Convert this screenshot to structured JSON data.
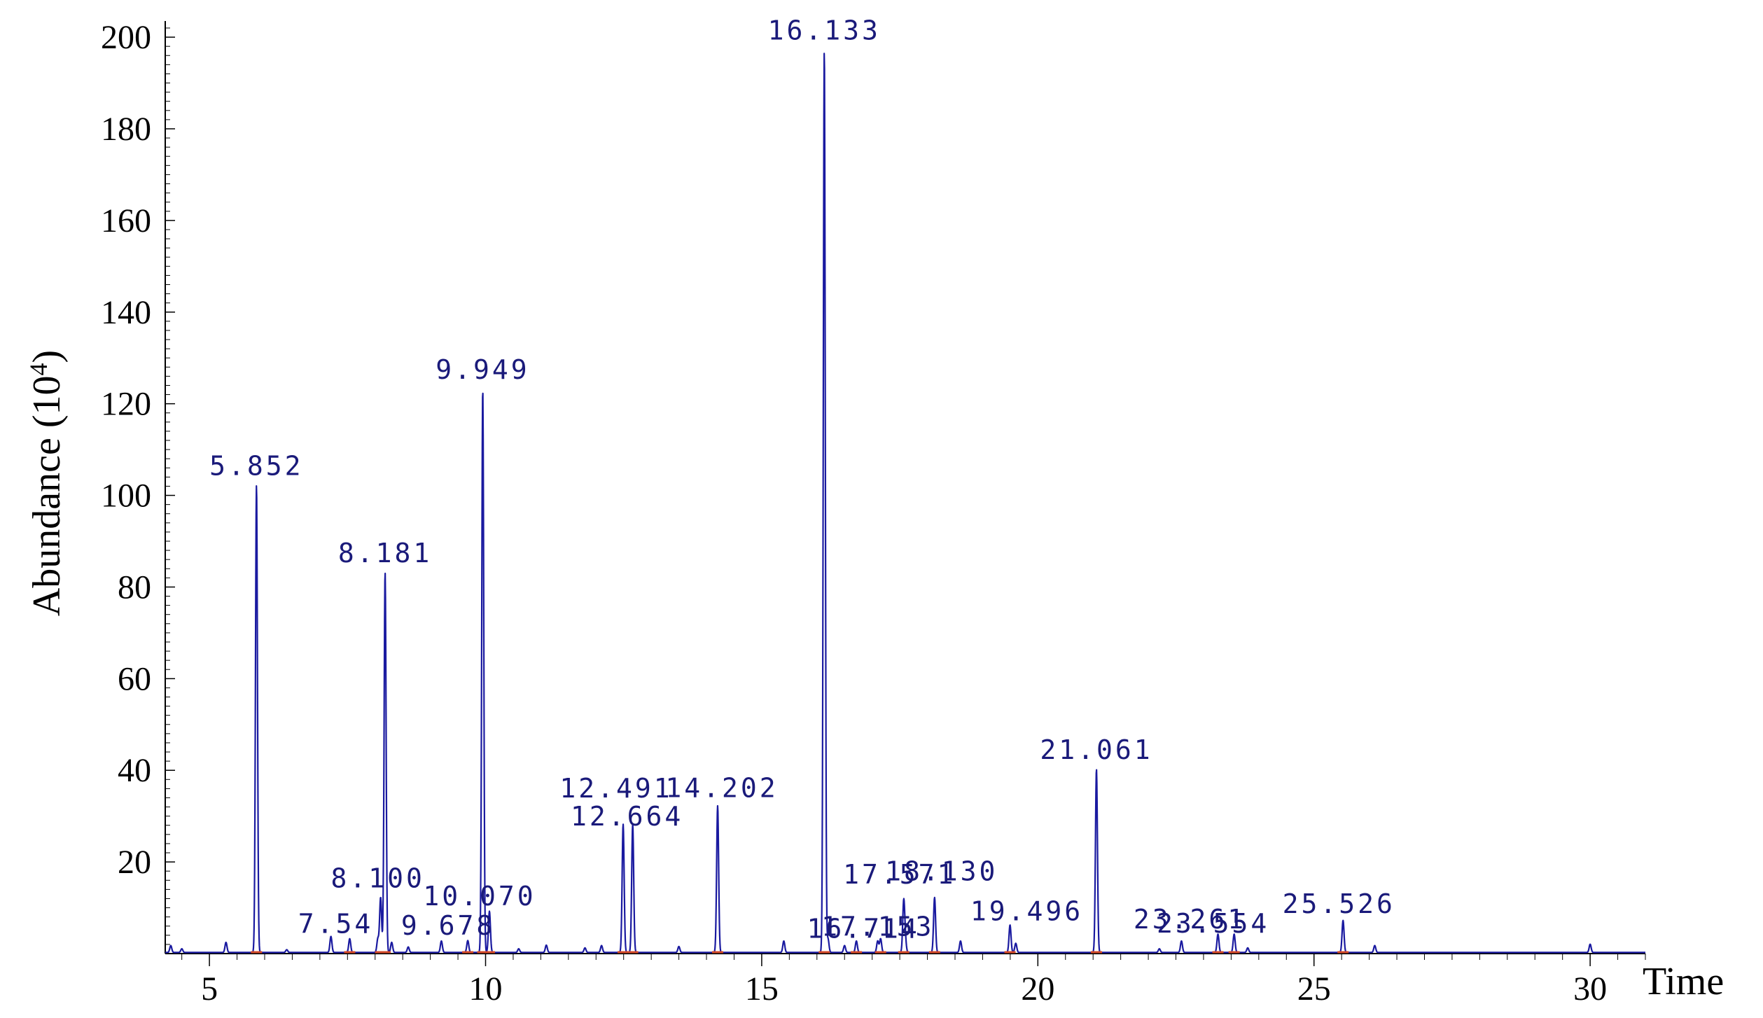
{
  "chart_data": {
    "type": "line",
    "title": "",
    "xlabel": "Time",
    "ylabel": "Abundance (10",
    "ylabel_sup": "4",
    "ylabel_close": ")",
    "xlim": [
      4.2,
      31.0
    ],
    "ylim": [
      0,
      202
    ],
    "x_ticks": [
      5,
      10,
      15,
      20,
      25,
      30
    ],
    "x_tick_labels": [
      "5",
      "10",
      "15",
      "20",
      "25",
      "30"
    ],
    "y_ticks": [
      20,
      40,
      60,
      80,
      100,
      120,
      140,
      160,
      180,
      200
    ],
    "y_tick_labels": [
      "20",
      "40",
      "60",
      "80",
      "100",
      "120",
      "140",
      "160",
      "180",
      "200"
    ],
    "grid": false,
    "line_color": "#1a1aa0",
    "label_color": "#1a1a7a",
    "baseline_marker_color": "#d44a2a",
    "peaks": [
      {
        "x": 4.3,
        "y": 1.5
      },
      {
        "x": 4.5,
        "y": 0.8
      },
      {
        "x": 5.3,
        "y": 2.2
      },
      {
        "x": 5.852,
        "y": 102,
        "label": "5.852"
      },
      {
        "x": 6.4,
        "y": 0.6
      },
      {
        "x": 7.2,
        "y": 3.5
      },
      {
        "x": 7.54,
        "y": 3.0,
        "label": "7.54"
      },
      {
        "x": 8.05,
        "y": 3.0
      },
      {
        "x": 8.1,
        "y": 12,
        "label": "8.100"
      },
      {
        "x": 8.181,
        "y": 83,
        "label": "8.181"
      },
      {
        "x": 8.3,
        "y": 2.2
      },
      {
        "x": 8.6,
        "y": 1.2
      },
      {
        "x": 9.2,
        "y": 2.5
      },
      {
        "x": 9.678,
        "y": 2.6,
        "label": "9.678"
      },
      {
        "x": 9.949,
        "y": 123,
        "label": "9.949"
      },
      {
        "x": 10.07,
        "y": 9,
        "label": "10.070"
      },
      {
        "x": 10.6,
        "y": 0.8
      },
      {
        "x": 11.1,
        "y": 1.6
      },
      {
        "x": 11.8,
        "y": 1.0
      },
      {
        "x": 12.1,
        "y": 1.5
      },
      {
        "x": 12.491,
        "y": 28,
        "label": "12.491"
      },
      {
        "x": 12.664,
        "y": 28,
        "label": "12.664"
      },
      {
        "x": 13.5,
        "y": 1.3
      },
      {
        "x": 14.202,
        "y": 32,
        "label": "14.202"
      },
      {
        "x": 15.4,
        "y": 2.5
      },
      {
        "x": 16.133,
        "y": 197,
        "label": "16.133"
      },
      {
        "x": 16.2,
        "y": 3.0
      },
      {
        "x": 16.5,
        "y": 1.5
      },
      {
        "x": 16.714,
        "y": 2.5,
        "label": "16.714"
      },
      {
        "x": 17.1,
        "y": 2.5
      },
      {
        "x": 17.153,
        "y": 3.0,
        "label": "17.153"
      },
      {
        "x": 17.571,
        "y": 11,
        "label": "17.571"
      },
      {
        "x": 17.6,
        "y": 2.5
      },
      {
        "x": 18.13,
        "y": 12,
        "label": "18.130"
      },
      {
        "x": 18.6,
        "y": 2.5
      },
      {
        "x": 19.496,
        "y": 6,
        "label": "19.496"
      },
      {
        "x": 19.6,
        "y": 2.0
      },
      {
        "x": 21.061,
        "y": 40,
        "label": "21.061"
      },
      {
        "x": 22.2,
        "y": 0.8
      },
      {
        "x": 22.6,
        "y": 2.5
      },
      {
        "x": 23.261,
        "y": 4,
        "label": "23.261"
      },
      {
        "x": 23.554,
        "y": 4,
        "label": "23.554"
      },
      {
        "x": 23.8,
        "y": 1.0
      },
      {
        "x": 25.526,
        "y": 7,
        "label": "25.526"
      },
      {
        "x": 26.1,
        "y": 1.5
      },
      {
        "x": 30.0,
        "y": 1.8
      }
    ],
    "peak_labels": [
      {
        "text": "5.852",
        "x": 5.852,
        "y": 102
      },
      {
        "text": "8.181",
        "x": 8.181,
        "y": 83
      },
      {
        "text": "9.949",
        "x": 9.949,
        "y": 123
      },
      {
        "text": "16.133",
        "x": 16.133,
        "y": 197
      },
      {
        "text": "12.491",
        "x": 12.491,
        "y": 28
      },
      {
        "text": "12.664",
        "x": 12.664,
        "y": 28
      },
      {
        "text": "14.202",
        "x": 14.202,
        "y": 32
      },
      {
        "text": "21.061",
        "x": 21.061,
        "y": 40
      },
      {
        "text": "8.100",
        "x": 8.1,
        "y": 12
      },
      {
        "text": "10.070",
        "x": 10.07,
        "y": 9
      },
      {
        "text": "9.678",
        "x": 9.678,
        "y": 2.6
      },
      {
        "text": "7.54",
        "x": 7.54,
        "y": 3.0
      },
      {
        "text": "18.130",
        "x": 18.13,
        "y": 12
      },
      {
        "text": "17.571",
        "x": 17.571,
        "y": 11
      },
      {
        "text": "16.714",
        "x": 16.714,
        "y": 2.5
      },
      {
        "text": "17.153",
        "x": 17.153,
        "y": 3.0
      },
      {
        "text": "19.496",
        "x": 19.496,
        "y": 6
      },
      {
        "text": "23.261",
        "x": 23.261,
        "y": 4
      },
      {
        "text": "23.554",
        "x": 23.554,
        "y": 4
      },
      {
        "text": "25.526",
        "x": 25.526,
        "y": 7
      }
    ]
  }
}
